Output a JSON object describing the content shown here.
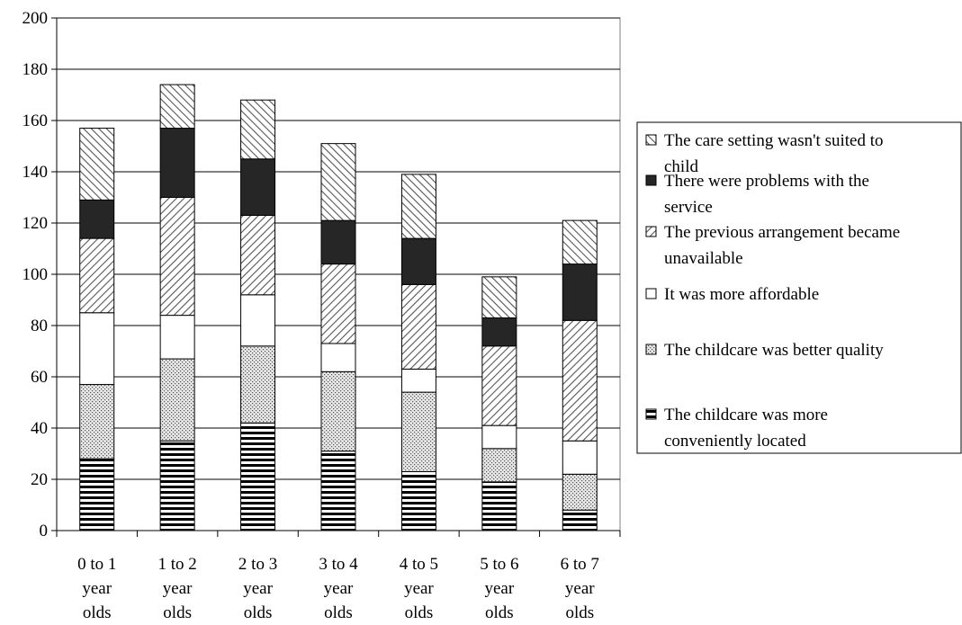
{
  "chart_data": {
    "type": "bar",
    "stacked": true,
    "categories": [
      [
        "0 to 1",
        "year",
        "olds"
      ],
      [
        "1 to 2",
        "year",
        "olds"
      ],
      [
        "2 to 3",
        "year",
        "olds"
      ],
      [
        "3 to 4",
        "year",
        "olds"
      ],
      [
        "4 to 5",
        "year",
        "olds"
      ],
      [
        "5 to 6",
        "year",
        "olds"
      ],
      [
        "6 to 7",
        "year",
        "olds"
      ]
    ],
    "ylim": [
      0,
      200
    ],
    "yticks": [
      "0",
      "20",
      "40",
      "60",
      "80",
      "100",
      "120",
      "140",
      "160",
      "180",
      "200"
    ],
    "grid": true,
    "legend_position": "right",
    "series": [
      {
        "name_lines": [
          "The childcare was more",
          "conveniently located"
        ],
        "pattern": "horizontal",
        "values": [
          28,
          35,
          42,
          31,
          23,
          19,
          8
        ]
      },
      {
        "name_lines": [
          "The childcare was better quality"
        ],
        "pattern": "dots",
        "values": [
          29,
          32,
          30,
          31,
          31,
          13,
          14
        ]
      },
      {
        "name_lines": [
          "It was more affordable"
        ],
        "pattern": "white",
        "values": [
          28,
          17,
          20,
          11,
          9,
          9,
          13
        ]
      },
      {
        "name_lines": [
          "The previous arrangement became",
          "unavailable"
        ],
        "pattern": "diagonal",
        "values": [
          29,
          46,
          31,
          31,
          33,
          31,
          47
        ]
      },
      {
        "name_lines": [
          "There were problems with the",
          "service"
        ],
        "pattern": "solid",
        "values": [
          15,
          27,
          22,
          17,
          18,
          11,
          22
        ]
      },
      {
        "name_lines": [
          "The care setting wasn't suited to",
          "child"
        ],
        "pattern": "backdiagonal",
        "values": [
          28,
          17,
          23,
          30,
          25,
          16,
          17
        ]
      }
    ]
  }
}
